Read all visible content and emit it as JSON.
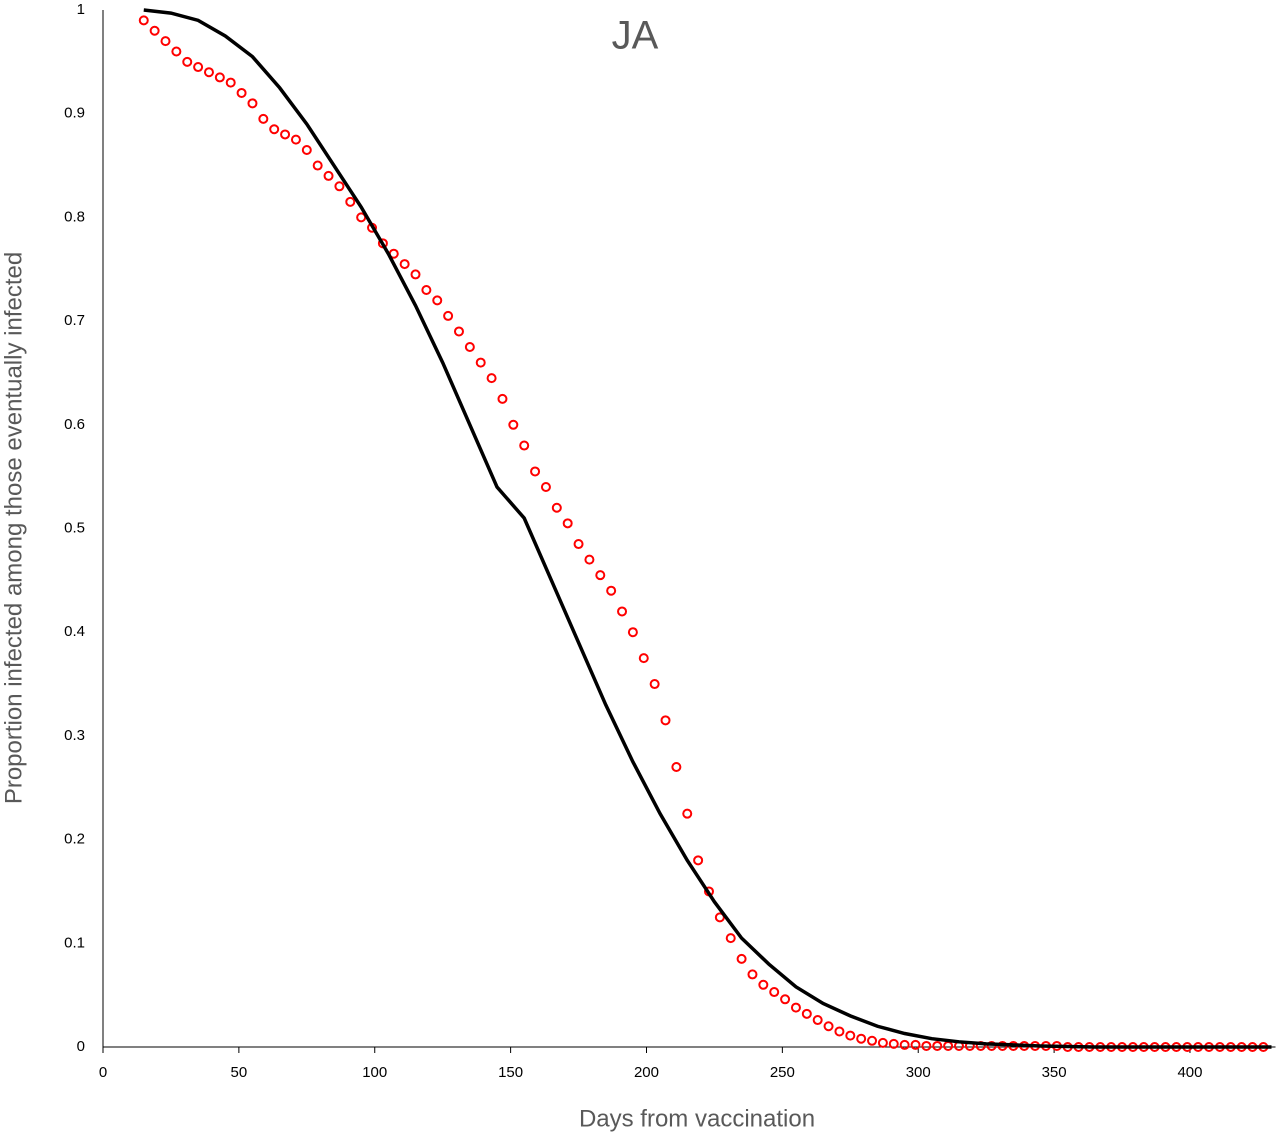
{
  "chart_data": {
    "type": "scatter",
    "title": "JA",
    "x_label": "Days from vaccination",
    "y_label": "Proportion infected among those eventually infected",
    "xlim": [
      0,
      430
    ],
    "ylim": [
      0,
      1
    ],
    "xticks": [
      0,
      50,
      100,
      150,
      200,
      250,
      300,
      350,
      400
    ],
    "yticks": [
      0,
      0.1,
      0.2,
      0.3,
      0.4,
      0.5,
      0.6,
      0.7,
      0.8,
      0.9,
      1
    ],
    "grid": false,
    "series": [
      {
        "style": "markers",
        "color": "#ff0000",
        "x": [
          15,
          19,
          23,
          27,
          31,
          35,
          39,
          43,
          47,
          51,
          55,
          59,
          63,
          67,
          71,
          75,
          79,
          83,
          87,
          91,
          95,
          99,
          103,
          107,
          111,
          115,
          119,
          123,
          127,
          131,
          135,
          139,
          143,
          147,
          151,
          155,
          159,
          163,
          167,
          171,
          175,
          179,
          183,
          187,
          191,
          195,
          199,
          203,
          207,
          211,
          215,
          219,
          223,
          227,
          231,
          235,
          239,
          243,
          247,
          251,
          255,
          259,
          263,
          267,
          271,
          275,
          279,
          283,
          287,
          291,
          295,
          299,
          303,
          307,
          311,
          315,
          319,
          323,
          327,
          331,
          335,
          339,
          343,
          347,
          351,
          355,
          359,
          363,
          367,
          371,
          375,
          379,
          383,
          387,
          391,
          395,
          399,
          403,
          407,
          411,
          415,
          419,
          423,
          427
        ],
        "values": [
          0.99,
          0.98,
          0.97,
          0.96,
          0.95,
          0.945,
          0.94,
          0.935,
          0.93,
          0.92,
          0.91,
          0.895,
          0.885,
          0.88,
          0.875,
          0.865,
          0.85,
          0.84,
          0.83,
          0.815,
          0.8,
          0.79,
          0.775,
          0.765,
          0.755,
          0.745,
          0.73,
          0.72,
          0.705,
          0.69,
          0.675,
          0.66,
          0.645,
          0.625,
          0.6,
          0.58,
          0.555,
          0.54,
          0.52,
          0.505,
          0.485,
          0.47,
          0.455,
          0.44,
          0.42,
          0.4,
          0.375,
          0.35,
          0.315,
          0.27,
          0.225,
          0.18,
          0.15,
          0.125,
          0.105,
          0.085,
          0.07,
          0.06,
          0.053,
          0.046,
          0.038,
          0.032,
          0.026,
          0.02,
          0.015,
          0.011,
          0.008,
          0.006,
          0.004,
          0.003,
          0.002,
          0.002,
          0.001,
          0.001,
          0.001,
          0.001,
          0.001,
          0.001,
          0.001,
          0.001,
          0.001,
          0.001,
          0.001,
          0.001,
          0.001,
          0,
          0,
          0,
          0,
          0,
          0,
          0,
          0,
          0,
          0,
          0,
          0,
          0,
          0,
          0,
          0,
          0,
          0,
          0
        ]
      },
      {
        "style": "line",
        "color": "#000000",
        "x": [
          15,
          25,
          35,
          45,
          55,
          65,
          75,
          85,
          95,
          105,
          115,
          125,
          135,
          145,
          155,
          165,
          175,
          185,
          195,
          205,
          215,
          225,
          235,
          245,
          255,
          265,
          275,
          285,
          295,
          305,
          315,
          325,
          335,
          345,
          355,
          365,
          375,
          385,
          395,
          405,
          415,
          425,
          430
        ],
        "values": [
          1,
          0.997,
          0.99,
          0.975,
          0.955,
          0.925,
          0.89,
          0.85,
          0.81,
          0.765,
          0.715,
          0.66,
          0.6,
          0.54,
          0.51,
          0.45,
          0.39,
          0.33,
          0.275,
          0.225,
          0.18,
          0.14,
          0.105,
          0.08,
          0.058,
          0.042,
          0.03,
          0.02,
          0.013,
          0.008,
          0.005,
          0.003,
          0.002,
          0.001,
          0.0005,
          0,
          0,
          0,
          0,
          0,
          0,
          0,
          0
        ]
      }
    ]
  }
}
